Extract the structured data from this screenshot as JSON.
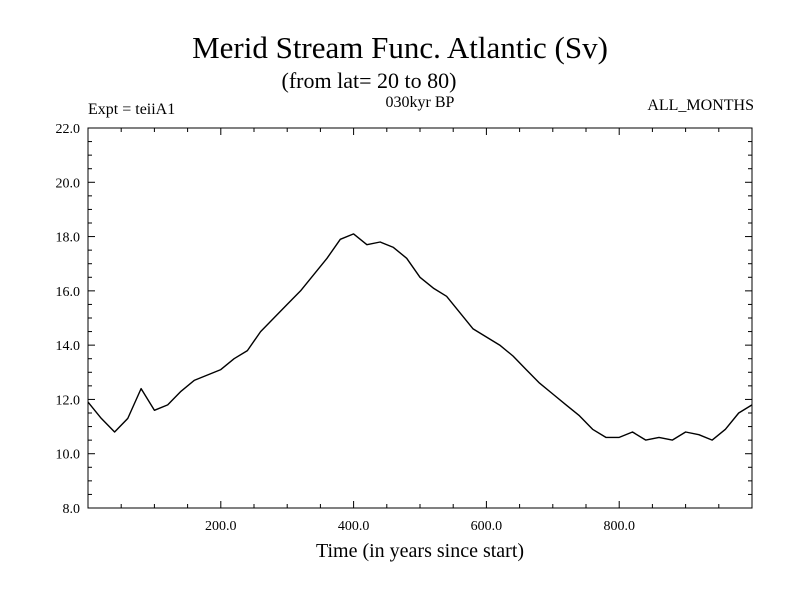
{
  "chart_data": {
    "type": "line",
    "title": "Merid Stream Func. Atlantic (Sv)",
    "subtitle": "(from lat= 20 to 80)",
    "experiment": "Expt = teiiA1",
    "period": "030kyr BP",
    "months": "ALL_MONTHS",
    "xlabel": "Time (in years since start)",
    "ylabel": "",
    "xlim": [
      0,
      1000
    ],
    "ylim": [
      8.0,
      22.0
    ],
    "x_ticks": [
      200.0,
      400.0,
      600.0,
      800.0
    ],
    "x_tick_labels": [
      "200.0",
      "400.0",
      "600.0",
      "800.0"
    ],
    "y_ticks": [
      8.0,
      10.0,
      12.0,
      14.0,
      16.0,
      18.0,
      20.0,
      22.0
    ],
    "y_tick_labels": [
      "8.0",
      "10.0",
      "12.0",
      "14.0",
      "16.0",
      "18.0",
      "20.0",
      "22.0"
    ],
    "grid": false,
    "line_color": "#000000",
    "series": [
      {
        "x": [
          0,
          20,
          40,
          60,
          80,
          100,
          120,
          140,
          160,
          180,
          200,
          220,
          240,
          260,
          280,
          300,
          320,
          340,
          360,
          380,
          400,
          420,
          440,
          460,
          480,
          500,
          520,
          540,
          560,
          580,
          600,
          620,
          640,
          660,
          680,
          700,
          720,
          740,
          760,
          780,
          800,
          820,
          840,
          860,
          880,
          900,
          920,
          940,
          960,
          980,
          1000
        ],
        "values": [
          11.9,
          11.3,
          10.8,
          11.3,
          12.4,
          11.6,
          11.8,
          12.3,
          12.7,
          12.9,
          13.1,
          13.5,
          13.8,
          14.5,
          15.0,
          15.5,
          16.0,
          16.6,
          17.2,
          17.9,
          18.1,
          17.7,
          17.8,
          17.6,
          17.2,
          16.5,
          16.1,
          15.8,
          15.2,
          14.6,
          14.3,
          14.0,
          13.6,
          13.1,
          12.6,
          12.2,
          11.8,
          11.4,
          10.9,
          10.6,
          10.6,
          10.8,
          10.5,
          10.6,
          10.5,
          10.8,
          10.7,
          10.5,
          10.9,
          11.5,
          11.8
        ]
      }
    ]
  }
}
